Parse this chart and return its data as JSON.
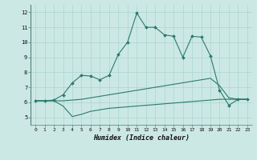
{
  "xlabel": "Humidex (Indice chaleur)",
  "xlim": [
    -0.5,
    23.5
  ],
  "ylim": [
    4.5,
    12.5
  ],
  "xticks": [
    0,
    1,
    2,
    3,
    4,
    5,
    6,
    7,
    8,
    9,
    10,
    11,
    12,
    13,
    14,
    15,
    16,
    17,
    18,
    19,
    20,
    21,
    22,
    23
  ],
  "yticks": [
    5,
    6,
    7,
    8,
    9,
    10,
    11,
    12
  ],
  "bg_color": "#cce8e4",
  "line_color": "#2a7a6e",
  "grid_color": "#aad4ce",
  "lines": [
    {
      "x": [
        0,
        1,
        2,
        3,
        4,
        5,
        6,
        7,
        8,
        9,
        10,
        11,
        12,
        13,
        14,
        15,
        16,
        17,
        18,
        19,
        20,
        21,
        22,
        23
      ],
      "y": [
        6.1,
        6.1,
        6.1,
        5.75,
        5.05,
        5.2,
        5.4,
        5.5,
        5.6,
        5.65,
        5.7,
        5.75,
        5.8,
        5.85,
        5.9,
        5.95,
        6.0,
        6.05,
        6.1,
        6.15,
        6.2,
        6.2,
        6.2,
        6.2
      ],
      "marker": false
    },
    {
      "x": [
        0,
        1,
        2,
        3,
        4,
        5,
        6,
        7,
        8,
        9,
        10,
        11,
        12,
        13,
        14,
        15,
        16,
        17,
        18,
        19,
        20,
        21,
        22,
        23
      ],
      "y": [
        6.1,
        6.1,
        6.1,
        6.1,
        6.15,
        6.2,
        6.3,
        6.4,
        6.5,
        6.6,
        6.7,
        6.8,
        6.9,
        7.0,
        7.1,
        7.2,
        7.3,
        7.4,
        7.5,
        7.6,
        7.1,
        6.3,
        6.2,
        6.2
      ],
      "marker": false
    },
    {
      "x": [
        0,
        1,
        2,
        3,
        4,
        5,
        6,
        7,
        8,
        9,
        10,
        11,
        12,
        13,
        14,
        15,
        16,
        17,
        18,
        19,
        20,
        21,
        22,
        23
      ],
      "y": [
        6.1,
        6.1,
        6.15,
        6.5,
        7.3,
        7.8,
        7.75,
        7.5,
        7.8,
        9.2,
        10.0,
        11.95,
        11.0,
        11.0,
        10.5,
        10.4,
        9.0,
        10.4,
        10.35,
        9.1,
        6.8,
        5.8,
        6.2,
        6.2
      ],
      "marker": true
    }
  ]
}
